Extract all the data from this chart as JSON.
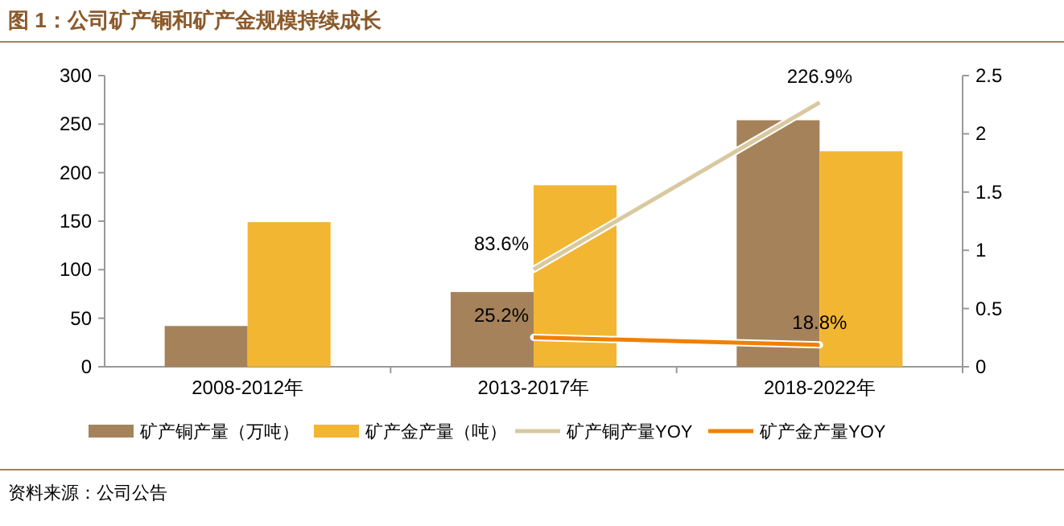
{
  "chart_data": {
    "type": "bar",
    "title": "图 1：公司矿产铜和矿产金规模持续成长",
    "annotations": [
      "资料来源：公司公告"
    ],
    "categories": [
      "2008-2012年",
      "2013-2017年",
      "2018-2022年"
    ],
    "series": [
      {
        "name": "矿产铜产量（万吨）",
        "color": "#a6825a",
        "values": [
          42,
          77,
          254
        ]
      },
      {
        "name": "矿产金产量（吨）",
        "color": "#f2b632",
        "values": [
          149,
          187,
          222
        ]
      },
      {
        "name": "矿产铜产量YOY",
        "type": "line",
        "axis": "y2",
        "color": "#d8c9a0",
        "values": [
          null,
          0.836,
          2.269
        ],
        "value_labels": [
          null,
          "83.6%",
          "226.9%"
        ]
      },
      {
        "name": "矿产金产量YOY",
        "type": "line",
        "axis": "y2",
        "color": "#f08000",
        "values": [
          null,
          0.252,
          0.188
        ],
        "value_labels": [
          null,
          "25.2%",
          "18.8%"
        ]
      }
    ],
    "ylim": [
      0,
      300
    ],
    "yticks": [
      0,
      50,
      100,
      150,
      200,
      250,
      300
    ],
    "y2lim": [
      0,
      2.5
    ],
    "y2ticks": [
      0,
      0.5,
      1,
      1.5,
      2,
      2.5
    ],
    "grid": false,
    "legend": "bottom"
  }
}
